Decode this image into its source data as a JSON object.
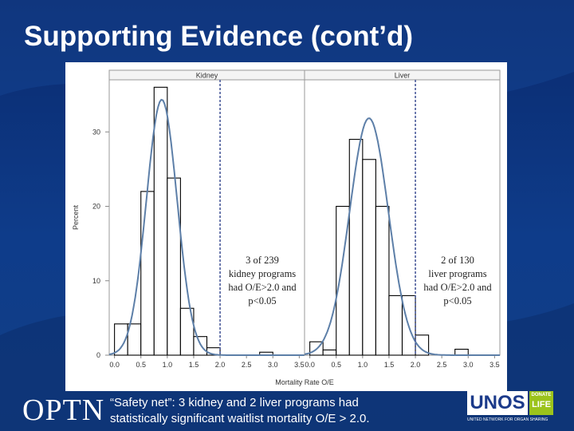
{
  "slide": {
    "title": "Supporting Evidence (cont’d)",
    "footer_logo": "OPTN",
    "caption_line1": "“Safety net”: 3 kidney and 2 liver programs had",
    "caption_line2": "statistically significant waitlist mortality O/E > 2.0.",
    "unos_word": "UNOS",
    "donate_small": "DONATE",
    "donate_life": "LIFE",
    "unos_tagline": "UNITED NETWORK FOR ORGAN SHARING"
  },
  "colors": {
    "background": "#0e3c8a",
    "bar_outline": "#000000",
    "density_curve": "#5d7fa8",
    "reference_line": "#4a5a9a",
    "panel_header": "#f4f4f4"
  },
  "chart_data": {
    "type": "bar",
    "xlabel": "Mortality Rate O/E",
    "ylabel": "Percent",
    "ylim": [
      0,
      37
    ],
    "xlim": [
      -0.1,
      3.6
    ],
    "yticks": [
      0,
      10,
      20,
      30
    ],
    "xticks": [
      "0.0",
      "0.5",
      "1.0",
      "1.5",
      "2.0",
      "2.5",
      "3.0",
      "3.5"
    ],
    "bin_width": 0.25,
    "reference_x": 2.0,
    "density_curve": true,
    "panels": [
      {
        "name": "Kidney",
        "bin_left_edges": [
          0.0,
          0.25,
          0.5,
          0.75,
          1.0,
          1.25,
          1.5,
          1.75,
          2.0,
          2.25,
          2.5,
          2.75,
          3.0,
          3.25
        ],
        "values": [
          4.2,
          4.2,
          22.0,
          36.0,
          23.8,
          6.3,
          2.5,
          1.0,
          0,
          0,
          0,
          0.4,
          0,
          0
        ],
        "annotation": [
          "3 of 239",
          "kidney programs",
          "had O/E>2.0 and",
          "p<0.05"
        ]
      },
      {
        "name": "Liver",
        "bin_left_edges": [
          0.0,
          0.25,
          0.5,
          0.75,
          1.0,
          1.25,
          1.5,
          1.75,
          2.0,
          2.25,
          2.5,
          2.75,
          3.0,
          3.25
        ],
        "values": [
          1.8,
          0.7,
          20.0,
          29.0,
          26.3,
          20.0,
          8.0,
          8.0,
          2.7,
          0,
          0,
          0.8,
          0,
          0
        ],
        "annotation": [
          "2 of 130",
          "liver programs",
          "had O/E>2.0 and",
          "p<0.05"
        ]
      }
    ]
  }
}
